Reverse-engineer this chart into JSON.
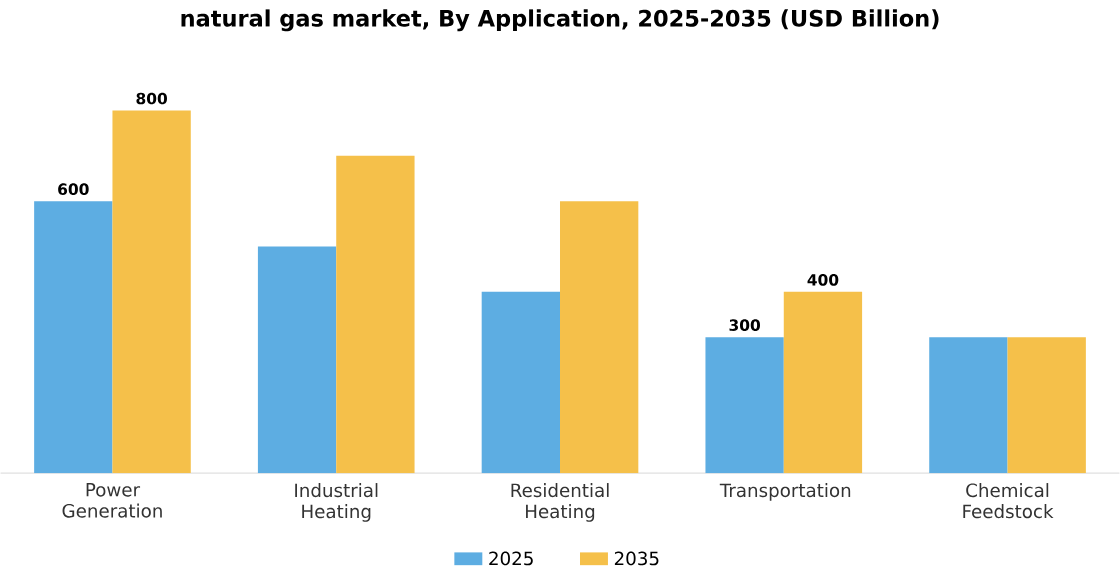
{
  "chart_data": {
    "type": "bar",
    "title": "natural gas market, By Application, 2025-2035 (USD Billion)",
    "categories": [
      "Power Generation",
      "Industrial Heating",
      "Residential Heating",
      "Transportation",
      "Chemical Feedstock"
    ],
    "series": [
      {
        "name": "2025",
        "color": "#5dade2",
        "values": [
          600,
          500,
          400,
          300,
          300
        ],
        "value_labels": [
          "600",
          null,
          null,
          "300",
          null
        ]
      },
      {
        "name": "2035",
        "color": "#f5c04a",
        "values": [
          800,
          700,
          600,
          400,
          300
        ],
        "value_labels": [
          "800",
          null,
          null,
          "400",
          null
        ]
      }
    ],
    "legend": "bottom",
    "grid": false
  }
}
